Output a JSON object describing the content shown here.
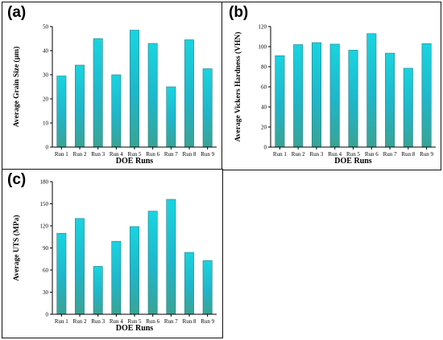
{
  "colors": {
    "bar_top": "#19d4e0",
    "bar_mid": "#1fb6c9",
    "bar_bottom": "#3aa394",
    "axis": "#000000"
  },
  "chart_data": [
    {
      "panel_label": "(a)",
      "type": "bar",
      "categories": [
        "Run 1",
        "Run 2",
        "Run 3",
        "Run 4",
        "Run 5",
        "Run 6",
        "Run 7",
        "Run 8",
        "Run 9"
      ],
      "values": [
        29.5,
        34,
        45,
        30,
        48.5,
        43,
        25,
        44.5,
        32.5
      ],
      "xlabel": "DOE Runs",
      "ylabel": "Average Grain Size (µm)",
      "ylim": [
        0,
        50
      ],
      "yticks": [
        "0",
        "10",
        "20",
        "30",
        "40",
        "50"
      ],
      "grid": false
    },
    {
      "panel_label": "(b)",
      "type": "bar",
      "categories": [
        "Run 1",
        "Run 2",
        "Run 3",
        "Run 4",
        "Run 5",
        "Run 6",
        "Run 7",
        "Run 8",
        "Run 9"
      ],
      "values": [
        91,
        102,
        104,
        102.5,
        96.5,
        113,
        93.5,
        78.5,
        103
      ],
      "xlabel": "DOE Runs",
      "ylabel": "Average Vickers Hardness (VHN)",
      "ylim": [
        0,
        120
      ],
      "yticks": [
        "0",
        "20",
        "40",
        "60",
        "80",
        "100",
        "120"
      ],
      "grid": false
    },
    {
      "panel_label": "(c)",
      "type": "bar",
      "categories": [
        "Run 1",
        "Run 2",
        "Run 3",
        "Run 4",
        "Run 5",
        "Run 6",
        "Run 7",
        "Run 8",
        "Run 9"
      ],
      "values": [
        110,
        130,
        65,
        99,
        119,
        140,
        156,
        84,
        73
      ],
      "xlabel": "DOE Runs",
      "ylabel": "Average UTS (MPa)",
      "ylim": [
        0,
        180
      ],
      "yticks": [
        "0",
        "30",
        "60",
        "90",
        "120",
        "150",
        "180"
      ],
      "grid": false
    }
  ]
}
